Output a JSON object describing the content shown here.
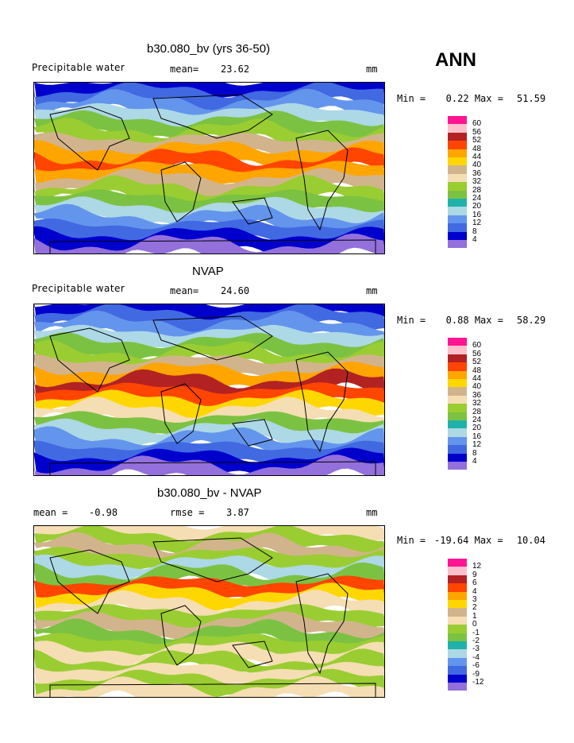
{
  "season": "ANN",
  "chart_data": [
    {
      "type": "heatmap",
      "title": "b30.080_bv (yrs 36-50)",
      "variable": "Precipitable water",
      "mean_label": "mean=",
      "mean": "23.62",
      "units": "mm",
      "min_label": "Min =",
      "min": "0.22",
      "max_label": "Max =",
      "max": "51.59",
      "levels": [
        "60",
        "56",
        "52",
        "48",
        "44",
        "40",
        "36",
        "32",
        "28",
        "24",
        "20",
        "16",
        "12",
        "8",
        "4"
      ],
      "colors": [
        "#ff1493",
        "#ffc0cb",
        "#b22222",
        "#ff4500",
        "#ffa500",
        "#ffd700",
        "#d2b48c",
        "#f5deb3",
        "#9acd32",
        "#7cc242",
        "#20b2aa",
        "#add8e6",
        "#6495ed",
        "#4169e1",
        "#0000cd",
        "#9370db"
      ]
    },
    {
      "type": "heatmap",
      "title": "NVAP",
      "variable": "Precipitable water",
      "mean_label": "mean=",
      "mean": "24.60",
      "units": "mm",
      "min_label": "Min =",
      "min": "0.88",
      "max_label": "Max =",
      "max": "58.29",
      "levels": [
        "60",
        "56",
        "52",
        "48",
        "44",
        "40",
        "36",
        "32",
        "28",
        "24",
        "20",
        "16",
        "12",
        "8",
        "4"
      ],
      "colors": [
        "#ff1493",
        "#ffc0cb",
        "#b22222",
        "#ff4500",
        "#ffa500",
        "#ffd700",
        "#d2b48c",
        "#f5deb3",
        "#9acd32",
        "#7cc242",
        "#20b2aa",
        "#add8e6",
        "#6495ed",
        "#4169e1",
        "#0000cd",
        "#9370db"
      ]
    },
    {
      "type": "heatmap",
      "title": "b30.080_bv - NVAP",
      "mean_label": "mean =",
      "mean": "-0.98",
      "rmse_label": "rmse =",
      "rmse": "3.87",
      "units": "mm",
      "min_label": "Min =",
      "min": "-19.64",
      "max_label": "Max =",
      "max": "10.04",
      "levels": [
        "12",
        "9",
        "6",
        "4",
        "3",
        "2",
        "1",
        "0",
        "-1",
        "-2",
        "-3",
        "-4",
        "-6",
        "-9",
        "-12"
      ],
      "colors": [
        "#ff1493",
        "#ffc0cb",
        "#b22222",
        "#ff4500",
        "#ffa500",
        "#ffd700",
        "#d2b48c",
        "#f5deb3",
        "#9acd32",
        "#7cc242",
        "#20b2aa",
        "#add8e6",
        "#6495ed",
        "#4169e1",
        "#0000cd",
        "#9370db"
      ]
    }
  ]
}
